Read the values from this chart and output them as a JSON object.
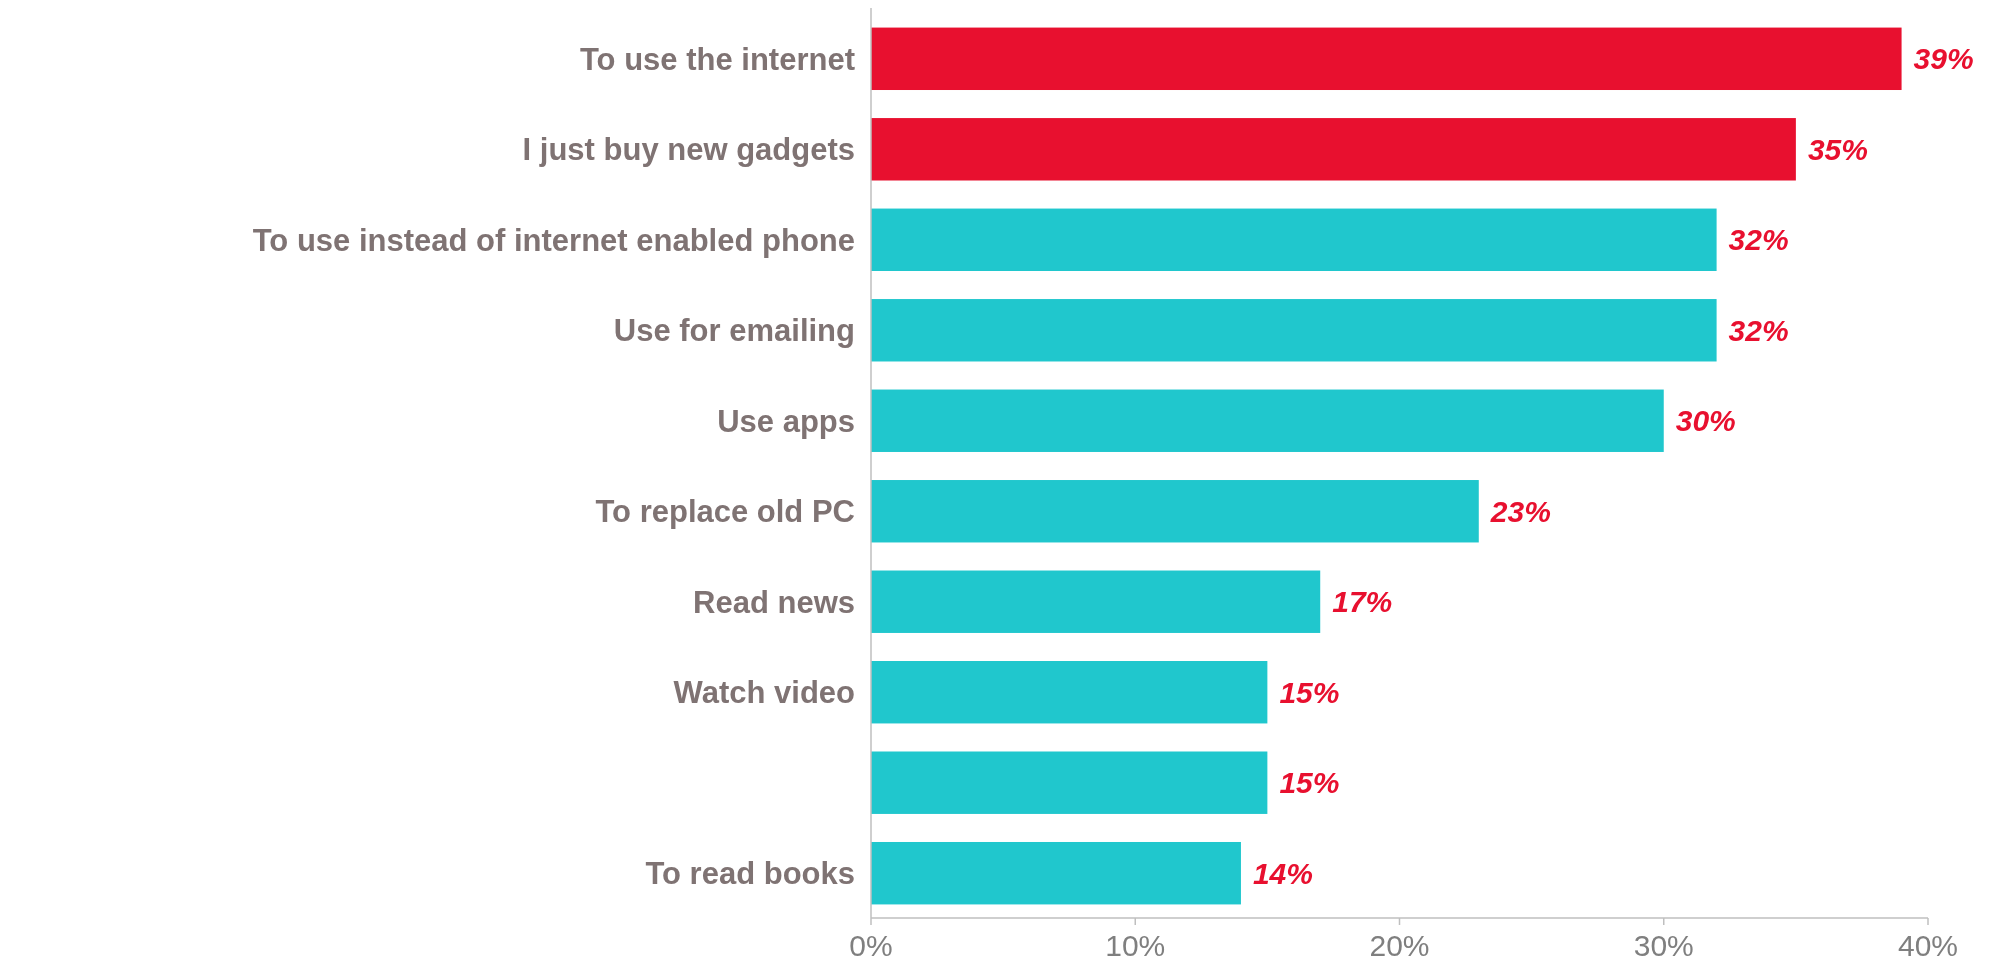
{
  "chart_data": {
    "type": "bar",
    "orientation": "horizontal",
    "categories": [
      "To use the internet",
      "I just buy new gadgets",
      "To use instead of internet enabled phone",
      "Use for emailing",
      "Use apps",
      "To replace old PC",
      "Read news",
      "Watch video",
      null,
      "To read books"
    ],
    "values": [
      39,
      35,
      32,
      32,
      30,
      23,
      17,
      15,
      15,
      14
    ],
    "colors": [
      "#e8102f",
      "#e8102f",
      "#20c7cd",
      "#20c7cd",
      "#20c7cd",
      "#20c7cd",
      "#20c7cd",
      "#20c7cd",
      "#20c7cd",
      "#20c7cd"
    ],
    "value_labels": [
      "39%",
      "35%",
      "32%",
      "32%",
      "30%",
      "23%",
      "17%",
      "15%",
      "15%",
      "14%"
    ],
    "xlim": [
      0,
      40
    ],
    "xticks": [
      {
        "value": 0,
        "label": "0%"
      },
      {
        "value": 10,
        "label": "10%"
      },
      {
        "value": 20,
        "label": "20%"
      },
      {
        "value": 30,
        "label": "30%"
      },
      {
        "value": 40,
        "label": "40%"
      }
    ],
    "grid": false
  }
}
